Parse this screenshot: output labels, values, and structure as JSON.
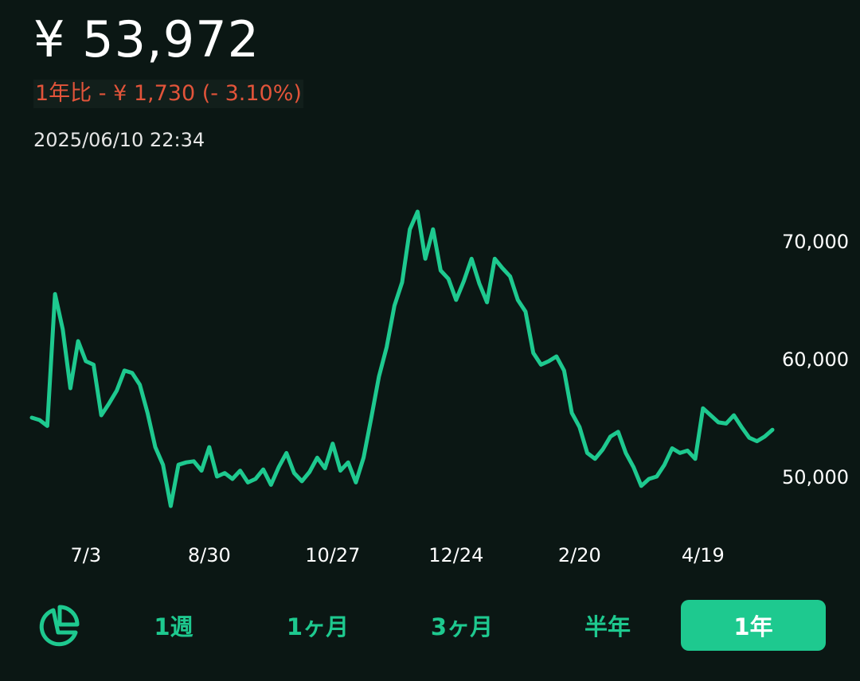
{
  "header": {
    "price": "¥ 53,972",
    "change": "1年比 - ¥ 1,730 (- 3.10%)",
    "timestamp": "2025/06/10 22:34"
  },
  "colors": {
    "background": "#0b1714",
    "line": "#1ec98f",
    "negative": "#e2543a",
    "accent": "#1ec98f"
  },
  "controls": {
    "chart_type_icon": "pie-chart-icon",
    "ranges": [
      {
        "label": "1週",
        "active": false
      },
      {
        "label": "1ヶ月",
        "active": false
      },
      {
        "label": "3ヶ月",
        "active": false
      },
      {
        "label": "半年",
        "active": false
      },
      {
        "label": "1年",
        "active": true
      }
    ]
  },
  "chart_data": {
    "type": "line",
    "title": "",
    "xlabel": "",
    "ylabel": "",
    "ylim": [
      44000,
      74000
    ],
    "yticks": [
      50000,
      60000,
      70000
    ],
    "ytick_labels": [
      "50,000",
      "60,000",
      "70,000"
    ],
    "xtick_labels": [
      "7/3",
      "8/30",
      "10/27",
      "12/24",
      "2/20",
      "4/19"
    ],
    "xtick_index": [
      7,
      23,
      39,
      55,
      71,
      87
    ],
    "grid": false,
    "legend": "none",
    "series": [
      {
        "values": [
          55000,
          54800,
          54300,
          65500,
          62500,
          57500,
          61500,
          59800,
          59500,
          55200,
          56200,
          57300,
          59000,
          58800,
          57800,
          55400,
          52500,
          51000,
          47500,
          51000,
          51200,
          51300,
          50500,
          52500,
          50000,
          50300,
          49800,
          50500,
          49500,
          49800,
          50600,
          49300,
          50800,
          52000,
          50300,
          49600,
          50400,
          51600,
          50700,
          52800,
          50500,
          51200,
          49500,
          51600,
          55000,
          58500,
          61000,
          64500,
          66500,
          71000,
          72500,
          68500,
          71000,
          67500,
          66800,
          65000,
          66600,
          68500,
          66400,
          64800,
          68500,
          67700,
          67000,
          65000,
          64000,
          60500,
          59500,
          59800,
          60200,
          59000,
          55400,
          54200,
          52000,
          51500,
          52300,
          53400,
          53800,
          52000,
          50800,
          49200,
          49800,
          50000,
          51000,
          52400,
          52000,
          52200,
          51500,
          55800,
          55200,
          54600,
          54500,
          55200,
          54200,
          53300,
          53000,
          53400,
          53972
        ]
      }
    ]
  },
  "y_axis_labels": [
    "70,000",
    "60,000",
    "50,000"
  ]
}
